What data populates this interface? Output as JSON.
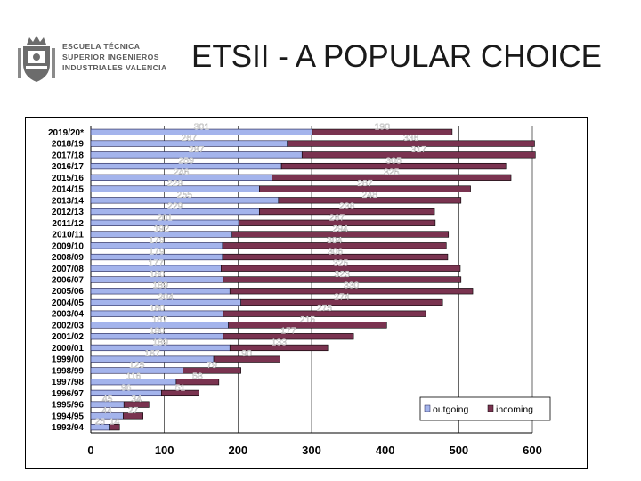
{
  "header": {
    "title": "ETSII - A POPULAR CHOICE",
    "logo_lines": [
      "ESCUELA TÉCNICA",
      "SUPERIOR INGENIEROS",
      "INDUSTRIALES VALENCIA"
    ]
  },
  "colors": {
    "outgoing": "#a4b4ec",
    "incoming": "#7a3350"
  },
  "chart_data": {
    "type": "bar",
    "orientation": "horizontal",
    "stacked": true,
    "categories": [
      "2019/20*",
      "2018/19",
      "2017/18",
      "2016/17",
      "2015/16",
      "2014/15",
      "2013/14",
      "2012/13",
      "2011/12",
      "2010/11",
      "2009/10",
      "2008/09",
      "2007/08",
      "2006/07",
      "2005/06",
      "2004/05",
      "2003/04",
      "2002/03",
      "2001/02",
      "2000/01",
      "1999/00",
      "1998/99",
      "1997/98",
      "1996/97",
      "1995/96",
      "1994/95",
      "1993/94"
    ],
    "series": [
      {
        "name": "outgoing",
        "values": [
          301,
          267,
          287,
          259,
          246,
          229,
          255,
          229,
          201,
          192,
          179,
          179,
          177,
          180,
          189,
          204,
          180,
          187,
          180,
          189,
          167,
          125,
          116,
          96,
          45,
          44,
          25
        ]
      },
      {
        "name": "incoming",
        "values": [
          190,
          336,
          317,
          305,
          325,
          287,
          248,
          238,
          267,
          294,
          304,
          306,
          325,
          323,
          330,
          274,
          275,
          215,
          177,
          133,
          90,
          79,
          58,
          51,
          34,
          27,
          14
        ]
      }
    ],
    "xlim": [
      0,
      600
    ],
    "xticks": [
      0,
      100,
      200,
      300,
      400,
      500,
      600
    ],
    "grid": "vertical",
    "legend": "bottom-right"
  }
}
